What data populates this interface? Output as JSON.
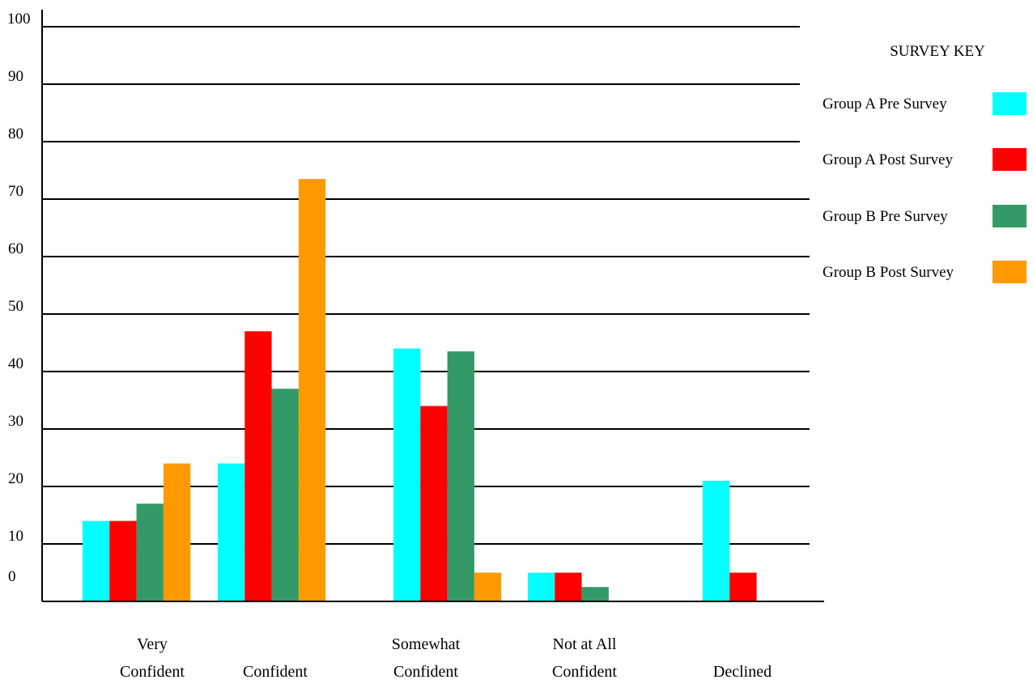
{
  "chart_data": {
    "type": "bar",
    "title": "",
    "xlabel": "",
    "ylabel": "",
    "ylim": [
      0,
      100
    ],
    "yticks": [
      "0",
      "10",
      "20",
      "30",
      "40",
      "50",
      "60",
      "70",
      "80",
      "90",
      "100"
    ],
    "grid": true,
    "legend_title": "SURVEY KEY",
    "legend_position": "right",
    "categories": [
      [
        "Very",
        "Confident"
      ],
      [
        "Confident"
      ],
      [
        "Somewhat",
        "Confident"
      ],
      [
        "Not at All",
        "Confident"
      ],
      [
        "Declined"
      ]
    ],
    "series": [
      {
        "name": "Group A Pre Survey",
        "color": "#00ffff",
        "values": [
          14,
          24,
          44,
          5,
          21
        ]
      },
      {
        "name": "Group A Post Survey",
        "color": "#ff0000",
        "values": [
          14,
          47,
          34,
          5,
          5
        ]
      },
      {
        "name": "Group B Pre Survey",
        "color": "#339966",
        "values": [
          17,
          37,
          43.5,
          2.5,
          0
        ]
      },
      {
        "name": "Group B Post Survey",
        "color": "#ff9900",
        "values": [
          24,
          73.5,
          5,
          0,
          0
        ]
      }
    ]
  }
}
